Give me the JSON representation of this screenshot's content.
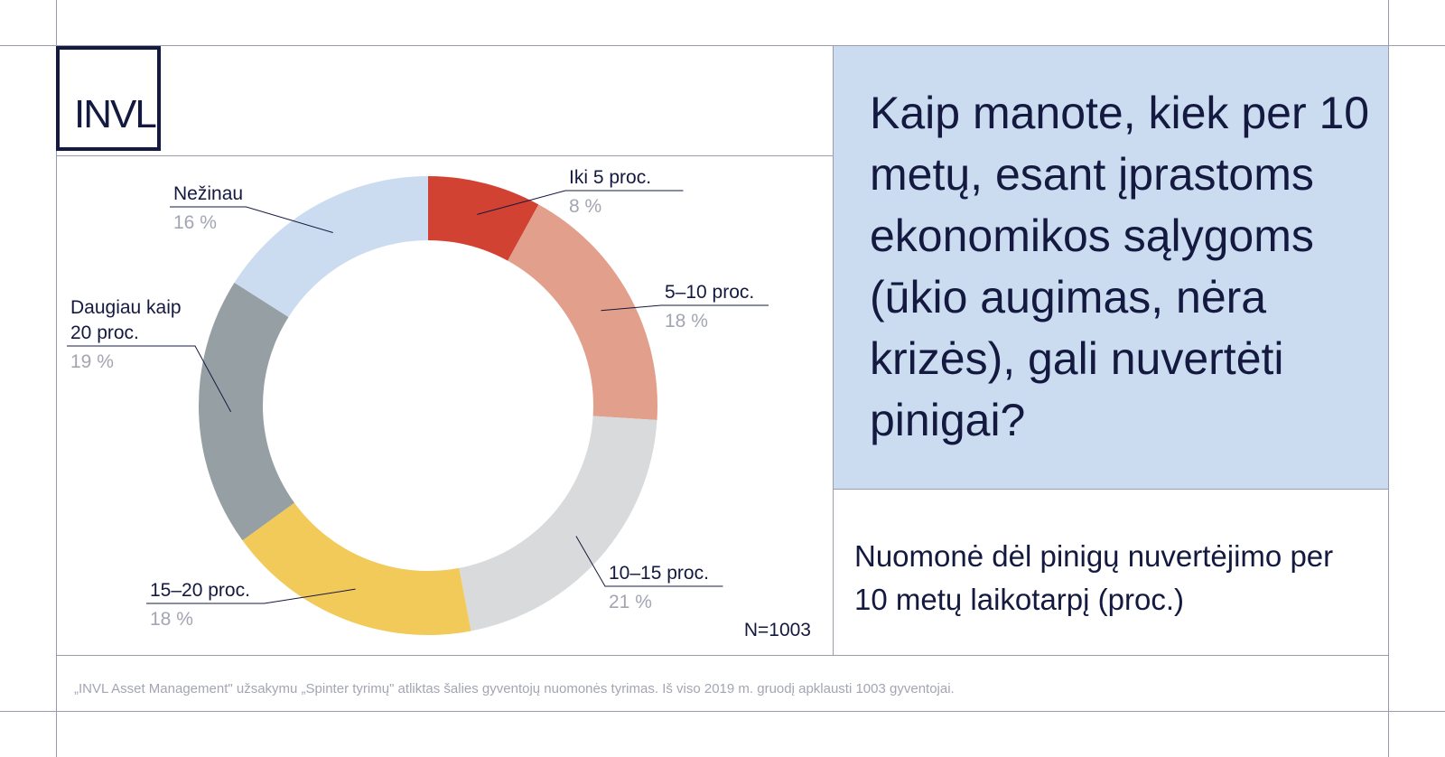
{
  "logo": {
    "text": "INVL"
  },
  "question": "Kaip manote, kiek per 10 metų, esant įprastoms ekonomikos sąlygoms (ūkio augimas, nėra krizės), gali nuvertėti pinigai?",
  "subtitle": "Nuomonė dėl pinigų nuvertėjimo per 10 metų laikotarpį (proc.)",
  "footnote": "„INVL Asset Management\" užsakymu „Spinter tyrimų\" atliktas šalies gyventojų nuomonės tyrimas. Iš viso 2019 m. gruodį apklausti 1003 gyventojai.",
  "chart_data": {
    "type": "pie",
    "donut": true,
    "sample_label": "N=1003",
    "slices": [
      {
        "label": "Iki 5 proc.",
        "value": 8,
        "value_text": "8 %",
        "color": "#d24232"
      },
      {
        "label": "5–10 proc.",
        "value": 18,
        "value_text": "18 %",
        "color": "#e29f8b"
      },
      {
        "label": "10–15 proc.",
        "value": 21,
        "value_text": "21 %",
        "color": "#d9dadc"
      },
      {
        "label": "15–20 proc.",
        "value": 18,
        "value_text": "18 %",
        "color": "#f1ca5a"
      },
      {
        "label": "Daugiau kaip 20 proc.",
        "label_lines": [
          "Daugiau kaip",
          "20 proc."
        ],
        "value": 19,
        "value_text": "19 %",
        "color": "#969fa3"
      },
      {
        "label": "Nežinau",
        "value": 16,
        "value_text": "16 %",
        "color": "#ccdcf0"
      }
    ]
  }
}
